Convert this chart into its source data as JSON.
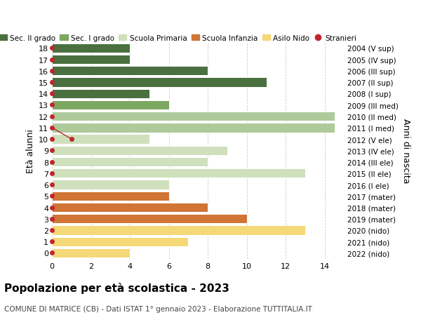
{
  "ages": [
    18,
    17,
    16,
    15,
    14,
    13,
    12,
    11,
    10,
    9,
    8,
    7,
    6,
    5,
    4,
    3,
    2,
    1,
    0
  ],
  "years": [
    "2004 (V sup)",
    "2005 (IV sup)",
    "2006 (III sup)",
    "2007 (II sup)",
    "2008 (I sup)",
    "2009 (III med)",
    "2010 (II med)",
    "2011 (I med)",
    "2012 (V ele)",
    "2013 (IV ele)",
    "2014 (III ele)",
    "2015 (II ele)",
    "2016 (I ele)",
    "2017 (mater)",
    "2018 (mater)",
    "2019 (mater)",
    "2020 (nido)",
    "2021 (nido)",
    "2022 (nido)"
  ],
  "values": [
    4,
    4,
    8,
    11,
    5,
    6,
    14.5,
    14.5,
    5,
    9,
    8,
    13,
    6,
    6,
    8,
    10,
    13,
    7,
    4
  ],
  "bar_colors": [
    "#4a7040",
    "#4a7040",
    "#4a7040",
    "#4a7040",
    "#4a7040",
    "#7da862",
    "#aec99a",
    "#aec99a",
    "#cfe0bc",
    "#cfe0bc",
    "#cfe0bc",
    "#cfe0bc",
    "#cfe0bc",
    "#d07535",
    "#d07535",
    "#d07535",
    "#f5d878",
    "#f5d878",
    "#f5d878"
  ],
  "stranieri_ages": [
    10
  ],
  "stranieri_values": [
    1
  ],
  "title": "Popolazione per età scolastica - 2023",
  "subtitle": "COMUNE DI MATRICE (CB) - Dati ISTAT 1° gennaio 2023 - Elaborazione TUTTITALIA.IT",
  "ylabel_left": "Età alunni",
  "ylabel_right": "Anni di nascita",
  "xlim": [
    0,
    15
  ],
  "ylim": [
    -0.55,
    18.55
  ],
  "xticks": [
    0,
    2,
    4,
    6,
    8,
    10,
    12,
    14
  ],
  "legend_labels": [
    "Sec. II grado",
    "Sec. I grado",
    "Scuola Primaria",
    "Scuola Infanzia",
    "Asilo Nido",
    "Stranieri"
  ],
  "legend_colors": [
    "#4a7040",
    "#7da862",
    "#cfe0bc",
    "#d07535",
    "#f5d878",
    "#c0272d"
  ],
  "background_color": "#ffffff",
  "grid_color": "#cccccc",
  "red_dot_color": "#c0272d"
}
